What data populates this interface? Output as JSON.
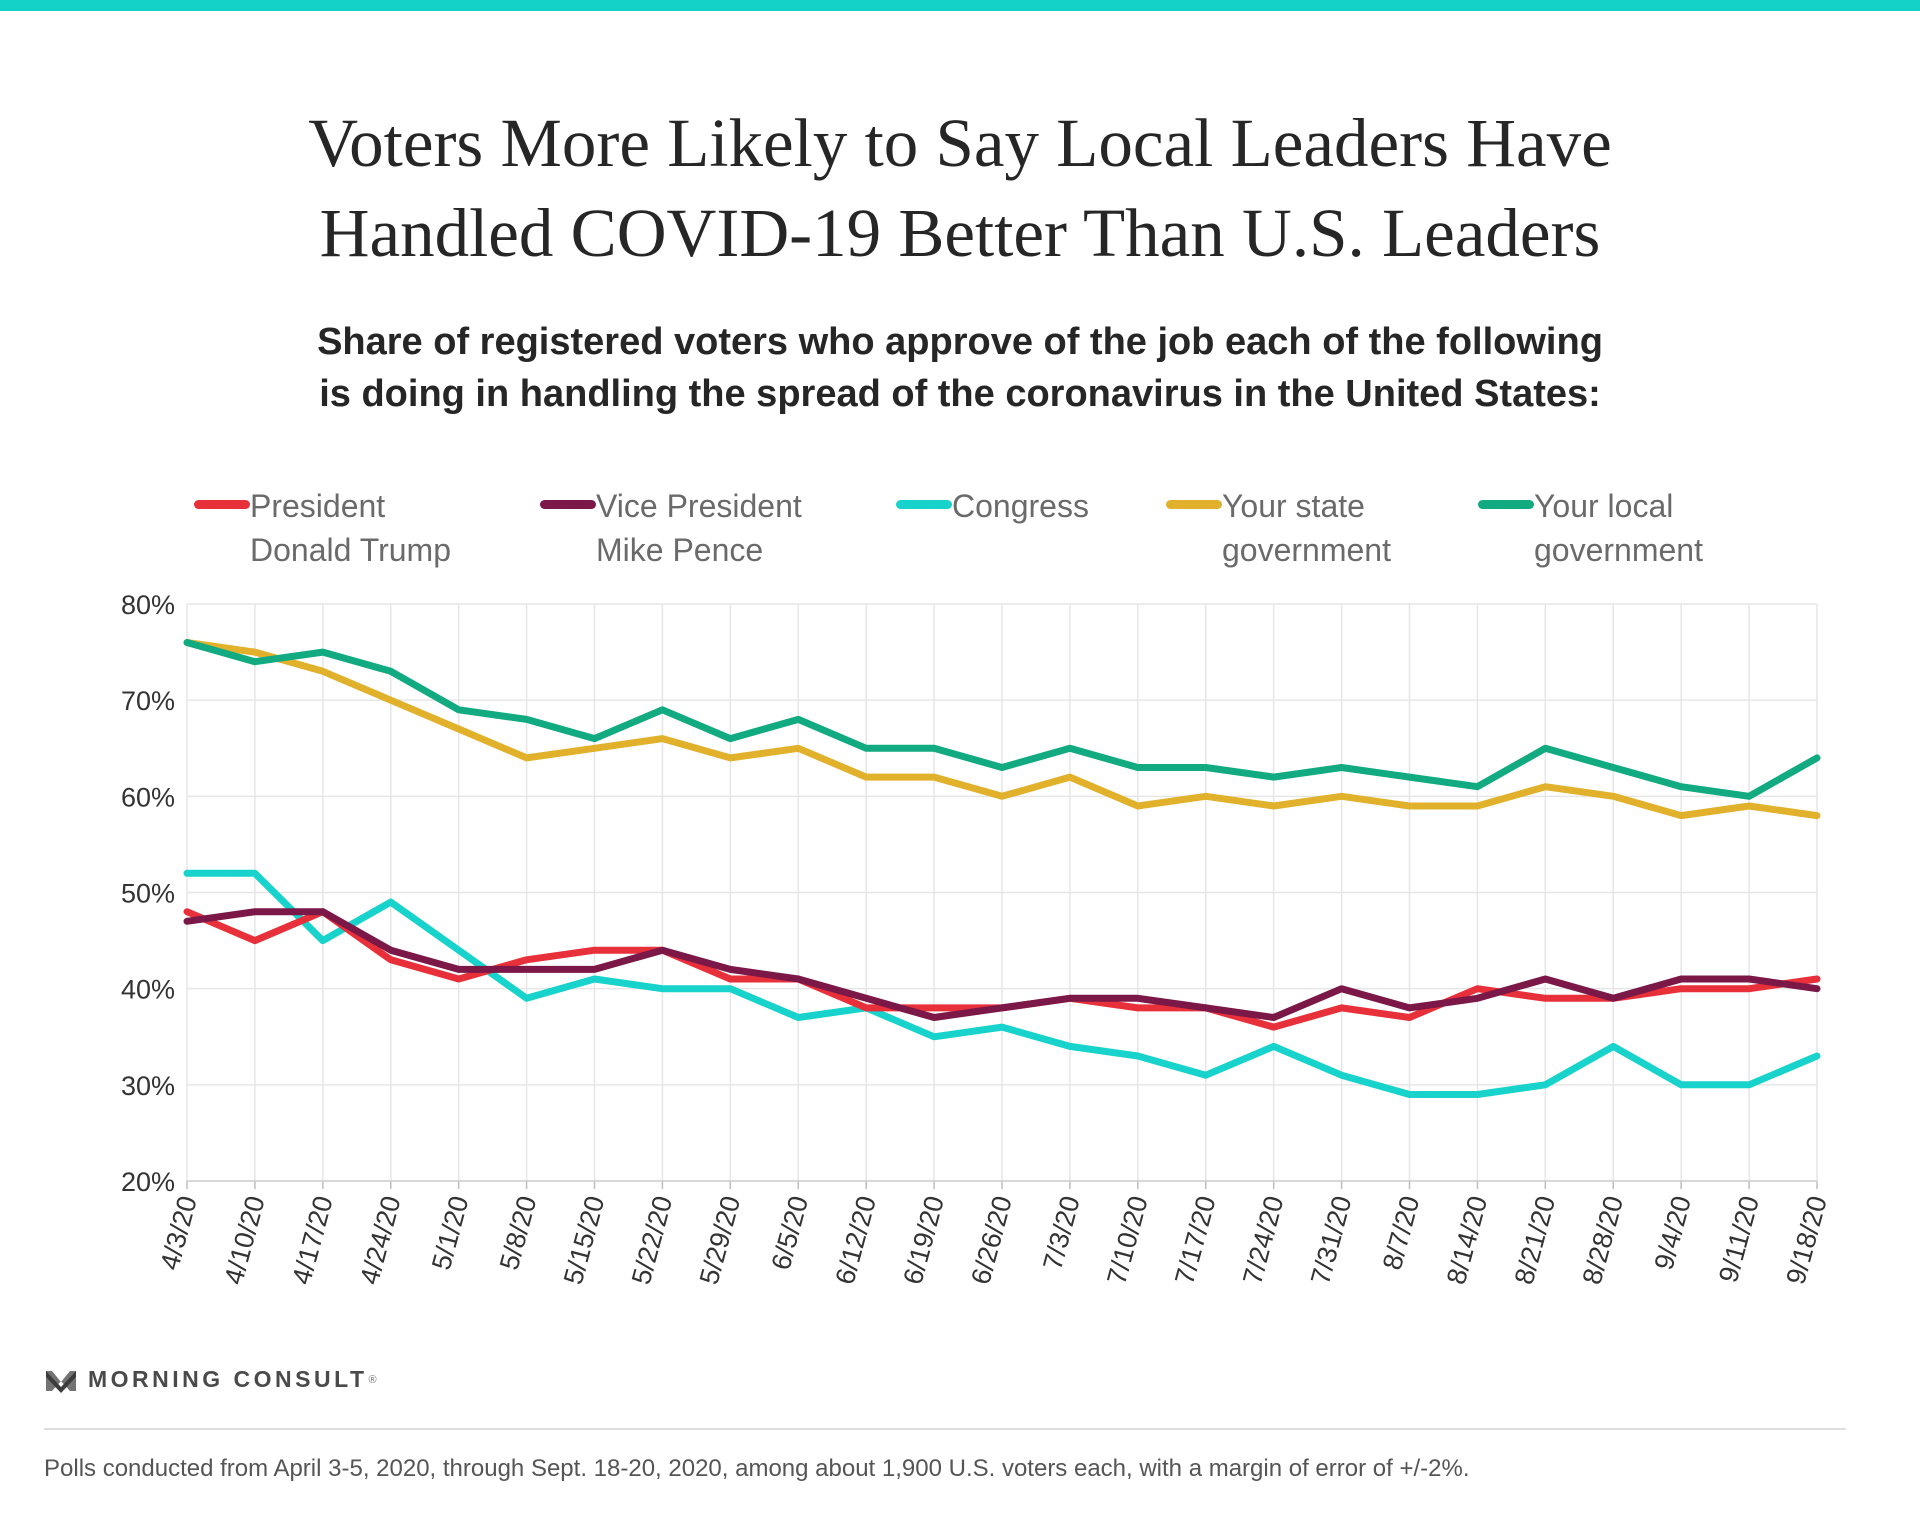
{
  "colors": {
    "accent_bar": "#13d2c8",
    "trump": "#e8303a",
    "pence": "#7b1848",
    "congress": "#17d3cc",
    "state": "#e2b12c",
    "local": "#12aa80"
  },
  "brand": {
    "name": "MORNING CONSULT",
    "mark": "®"
  },
  "footnote": "Polls conducted from April 3-5, 2020, through Sept. 18-20, 2020, among about 1,900 U.S. voters each, with a margin of error of +/-2%.",
  "chart_data": {
    "type": "line",
    "title_lines": [
      "Voters More Likely to Say Local Leaders Have",
      "Handled COVID-19 Better Than U.S. Leaders"
    ],
    "subtitle_lines": [
      "Share of registered voters who approve of the job each of the following",
      "is doing in handling the spread of the coronavirus in the United States:"
    ],
    "xlabel": "",
    "ylabel": "",
    "ylim": [
      20,
      80
    ],
    "yticks": [
      20,
      30,
      40,
      50,
      60,
      70,
      80
    ],
    "ytick_labels": [
      "20%",
      "30%",
      "40%",
      "50%",
      "60%",
      "70%",
      "80%"
    ],
    "grid": true,
    "legend_position": "top",
    "x": [
      "4/3/20",
      "4/10/20",
      "4/17/20",
      "4/24/20",
      "5/1/20",
      "5/8/20",
      "5/15/20",
      "5/22/20",
      "5/29/20",
      "6/5/20",
      "6/12/20",
      "6/19/20",
      "6/26/20",
      "7/3/20",
      "7/10/20",
      "7/17/20",
      "7/24/20",
      "7/31/20",
      "8/7/20",
      "8/14/20",
      "8/21/20",
      "8/28/20",
      "9/4/20",
      "9/11/20",
      "9/18/20"
    ],
    "series": [
      {
        "key": "trump",
        "name_lines": [
          "President",
          "Donald Trump"
        ],
        "values": [
          48,
          45,
          48,
          43,
          41,
          43,
          44,
          44,
          41,
          41,
          38,
          38,
          38,
          39,
          38,
          38,
          36,
          38,
          37,
          40,
          39,
          39,
          40,
          40,
          41
        ]
      },
      {
        "key": "pence",
        "name_lines": [
          "Vice President",
          "Mike Pence"
        ],
        "values": [
          47,
          48,
          48,
          44,
          42,
          42,
          42,
          44,
          42,
          41,
          39,
          37,
          38,
          39,
          39,
          38,
          37,
          40,
          38,
          39,
          41,
          39,
          41,
          41,
          40
        ]
      },
      {
        "key": "congress",
        "name_lines": [
          "Congress"
        ],
        "values": [
          52,
          52,
          45,
          49,
          44,
          39,
          41,
          40,
          40,
          37,
          38,
          35,
          36,
          34,
          33,
          31,
          34,
          31,
          29,
          29,
          30,
          34,
          30,
          30,
          33
        ]
      },
      {
        "key": "state",
        "name_lines": [
          "Your state",
          "government"
        ],
        "values": [
          76,
          75,
          73,
          70,
          67,
          64,
          65,
          66,
          64,
          65,
          62,
          62,
          60,
          62,
          59,
          60,
          59,
          60,
          59,
          59,
          61,
          60,
          58,
          59,
          58
        ]
      },
      {
        "key": "local",
        "name_lines": [
          "Your local",
          "government"
        ],
        "values": [
          76,
          74,
          75,
          73,
          69,
          68,
          66,
          69,
          66,
          68,
          65,
          65,
          63,
          65,
          63,
          63,
          62,
          63,
          62,
          61,
          65,
          63,
          61,
          60,
          64
        ]
      }
    ]
  }
}
